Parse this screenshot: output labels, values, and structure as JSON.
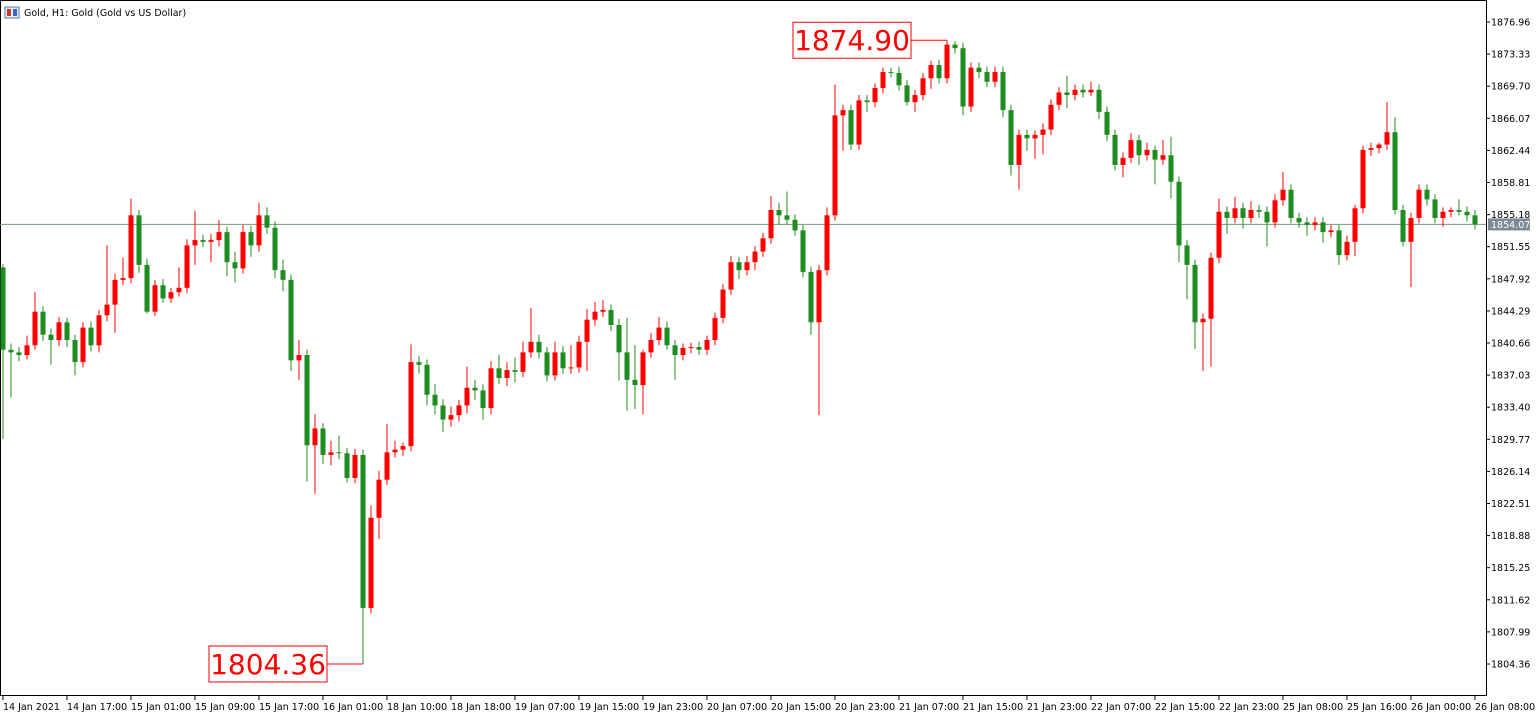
{
  "chart_data": {
    "type": "candlestick",
    "title": "Gold, H1:  Gold (Gold vs US Dollar)",
    "colors": {
      "up": "#ff0000",
      "down": "#1f8c1f"
    },
    "ylim": [
      1800.74,
      1879.45
    ],
    "yticks": [
      1876.96,
      1873.33,
      {
        "value": 1869.7,
        "label": "1869.70"
      },
      1866.07,
      1862.44,
      1858.81,
      1855.18,
      1851.55,
      1847.92,
      1844.29,
      1840.66,
      1837.03,
      {
        "value": 1833.4,
        "label": "1833.40"
      },
      1829.77,
      1826.14,
      1822.51,
      1818.88,
      1815.25,
      1811.62,
      1807.99,
      1804.36
    ],
    "xlim": [
      -0.375,
      185.375
    ],
    "xticks": [
      {
        "value": 0,
        "label": "14 Jan 2021"
      },
      {
        "value": 8,
        "label": "14 Jan 17:00"
      },
      {
        "value": 16,
        "label": "15 Jan 01:00"
      },
      {
        "value": 24,
        "label": "15 Jan 09:00"
      },
      {
        "value": 32,
        "label": "15 Jan 17:00"
      },
      {
        "value": 40,
        "label": "16 Jan 01:00"
      },
      {
        "value": 48,
        "label": "18 Jan 10:00"
      },
      {
        "value": 56,
        "label": "18 Jan 18:00"
      },
      {
        "value": 64,
        "label": "19 Jan 07:00"
      },
      {
        "value": 72,
        "label": "19 Jan 15:00"
      },
      {
        "value": 80,
        "label": "19 Jan 23:00"
      },
      {
        "value": 88,
        "label": "20 Jan 07:00"
      },
      {
        "value": 96,
        "label": "20 Jan 15:00"
      },
      {
        "value": 104,
        "label": "20 Jan 23:00"
      },
      {
        "value": 112,
        "label": "21 Jan 07:00"
      },
      {
        "value": 120,
        "label": "21 Jan 15:00"
      },
      {
        "value": 128,
        "label": "21 Jan 23:00"
      },
      {
        "value": 136,
        "label": "22 Jan 07:00"
      },
      {
        "value": 144,
        "label": "22 Jan 15:00"
      },
      {
        "value": 152,
        "label": "22 Jan 23:00"
      },
      {
        "value": 160,
        "label": "25 Jan 08:00"
      },
      {
        "value": 168,
        "label": "25 Jan 16:00"
      },
      {
        "value": 176,
        "label": "26 Jan 00:00"
      },
      {
        "value": 184,
        "label": "26 Jan 08:00"
      }
    ],
    "last_price": 1854.07,
    "annotations": [
      {
        "label": "1874.90",
        "value": 1874.9
      },
      {
        "label": "1804.36",
        "value": 1804.36
      }
    ],
    "ohlc": [
      [
        1849.2,
        1849.6,
        1829.8,
        1839.9
      ],
      [
        1839.9,
        1840.6,
        1834.5,
        1839.6
      ],
      [
        1839.6,
        1840.2,
        1838.6,
        1839.3
      ],
      [
        1839.3,
        1841.5,
        1838.8,
        1840.4
      ],
      [
        1840.4,
        1846.4,
        1839.9,
        1844.2
      ],
      [
        1844.2,
        1844.8,
        1840.9,
        1841.6
      ],
      [
        1841.6,
        1842.3,
        1838.2,
        1841.0
      ],
      [
        1841.0,
        1843.6,
        1840.3,
        1843.0
      ],
      [
        1843.0,
        1843.5,
        1840.2,
        1841.0
      ],
      [
        1841.0,
        1841.6,
        1837.0,
        1838.5
      ],
      [
        1838.5,
        1843.0,
        1837.9,
        1842.4
      ],
      [
        1842.4,
        1843.1,
        1839.7,
        1840.4
      ],
      [
        1840.4,
        1844.4,
        1839.6,
        1843.8
      ],
      [
        1843.8,
        1851.7,
        1843.1,
        1845.0
      ],
      [
        1845.0,
        1848.5,
        1841.8,
        1847.8
      ],
      [
        1847.8,
        1850.3,
        1847.2,
        1848.0
      ],
      [
        1848.0,
        1857.0,
        1847.4,
        1855.1
      ],
      [
        1855.1,
        1855.7,
        1848.6,
        1849.5
      ],
      [
        1849.5,
        1850.2,
        1844.0,
        1844.2
      ],
      [
        1844.2,
        1847.8,
        1843.7,
        1847.2
      ],
      [
        1847.2,
        1847.9,
        1845.2,
        1845.7
      ],
      [
        1845.7,
        1846.9,
        1845.2,
        1846.4
      ],
      [
        1846.4,
        1849.2,
        1845.9,
        1846.9
      ],
      [
        1846.9,
        1852.4,
        1846.3,
        1851.7
      ],
      [
        1851.7,
        1855.6,
        1849.5,
        1852.3
      ],
      [
        1852.3,
        1852.9,
        1851.5,
        1852.1
      ],
      [
        1852.1,
        1853.0,
        1849.8,
        1852.3
      ],
      [
        1852.3,
        1854.6,
        1851.6,
        1853.2
      ],
      [
        1853.2,
        1853.8,
        1848.2,
        1849.8
      ],
      [
        1849.8,
        1851.0,
        1847.5,
        1849.1
      ],
      [
        1849.1,
        1854.0,
        1848.5,
        1853.2
      ],
      [
        1853.2,
        1853.9,
        1850.4,
        1851.7
      ],
      [
        1851.7,
        1856.5,
        1851.0,
        1855.1
      ],
      [
        1855.1,
        1856.0,
        1853.0,
        1853.7
      ],
      [
        1853.7,
        1854.4,
        1848.0,
        1848.9
      ],
      [
        1848.9,
        1850.1,
        1846.5,
        1847.8
      ],
      [
        1847.8,
        1848.4,
        1837.5,
        1838.7
      ],
      [
        1838.7,
        1841.0,
        1836.5,
        1839.3
      ],
      [
        1839.3,
        1839.9,
        1825.0,
        1829.1
      ],
      [
        1829.1,
        1832.6,
        1823.6,
        1831.0
      ],
      [
        1831.0,
        1831.6,
        1827.0,
        1828.0
      ],
      [
        1828.0,
        1829.6,
        1826.8,
        1828.3
      ],
      [
        1828.3,
        1830.2,
        1827.5,
        1828.2
      ],
      [
        1828.2,
        1828.8,
        1824.9,
        1825.4
      ],
      [
        1825.4,
        1828.7,
        1824.8,
        1828.0
      ],
      [
        1828.0,
        1828.6,
        1804.36,
        1810.7
      ],
      [
        1810.7,
        1822.3,
        1810.1,
        1820.9
      ],
      [
        1820.9,
        1826.2,
        1818.5,
        1825.2
      ],
      [
        1825.2,
        1831.5,
        1824.6,
        1828.3
      ],
      [
        1828.3,
        1829.6,
        1827.7,
        1828.6
      ],
      [
        1828.6,
        1829.4,
        1827.9,
        1829.0
      ],
      [
        1829.0,
        1840.5,
        1828.4,
        1838.5
      ],
      [
        1838.5,
        1839.2,
        1837.2,
        1838.2
      ],
      [
        1838.2,
        1838.8,
        1833.6,
        1834.8
      ],
      [
        1834.8,
        1836.0,
        1832.6,
        1833.6
      ],
      [
        1833.6,
        1834.3,
        1830.6,
        1832.0
      ],
      [
        1832.0,
        1833.5,
        1831.2,
        1832.5
      ],
      [
        1832.5,
        1834.2,
        1831.8,
        1833.6
      ],
      [
        1833.6,
        1838.0,
        1832.7,
        1835.6
      ],
      [
        1835.6,
        1836.5,
        1834.2,
        1835.3
      ],
      [
        1835.3,
        1836.0,
        1832.0,
        1833.3
      ],
      [
        1833.3,
        1838.6,
        1832.6,
        1837.8
      ],
      [
        1837.8,
        1839.3,
        1836.0,
        1836.7
      ],
      [
        1836.7,
        1838.5,
        1835.8,
        1837.6
      ],
      [
        1837.6,
        1839.0,
        1836.2,
        1837.4
      ],
      [
        1837.4,
        1840.8,
        1836.8,
        1839.6
      ],
      [
        1839.6,
        1844.6,
        1839.0,
        1840.8
      ],
      [
        1840.8,
        1841.6,
        1838.9,
        1839.6
      ],
      [
        1839.6,
        1840.2,
        1836.3,
        1837.0
      ],
      [
        1837.0,
        1840.8,
        1836.4,
        1839.6
      ],
      [
        1839.6,
        1840.3,
        1837.2,
        1837.8
      ],
      [
        1837.8,
        1840.4,
        1837.2,
        1837.9
      ],
      [
        1837.9,
        1841.5,
        1837.3,
        1840.8
      ],
      [
        1840.8,
        1844.5,
        1837.5,
        1843.3
      ],
      [
        1843.3,
        1845.3,
        1842.6,
        1844.2
      ],
      [
        1844.2,
        1845.5,
        1843.6,
        1844.4
      ],
      [
        1844.4,
        1845.0,
        1842.0,
        1842.7
      ],
      [
        1842.7,
        1843.4,
        1836.4,
        1839.6
      ],
      [
        1839.6,
        1843.5,
        1833.0,
        1836.5
      ],
      [
        1836.5,
        1840.4,
        1833.2,
        1835.9
      ],
      [
        1835.9,
        1839.9,
        1832.6,
        1839.6
      ],
      [
        1839.6,
        1841.8,
        1839.0,
        1841.0
      ],
      [
        1841.0,
        1843.6,
        1840.4,
        1842.4
      ],
      [
        1842.4,
        1843.1,
        1839.9,
        1840.4
      ],
      [
        1840.4,
        1841.0,
        1836.5,
        1839.3
      ],
      [
        1839.3,
        1840.6,
        1838.7,
        1840.1
      ],
      [
        1840.1,
        1840.7,
        1839.5,
        1840.2
      ],
      [
        1840.2,
        1840.8,
        1839.3,
        1839.9
      ],
      [
        1839.9,
        1841.5,
        1839.3,
        1841.0
      ],
      [
        1841.0,
        1844.1,
        1840.4,
        1843.5
      ],
      [
        1843.5,
        1847.3,
        1842.9,
        1846.7
      ],
      [
        1846.7,
        1850.5,
        1846.1,
        1849.8
      ],
      [
        1849.8,
        1850.4,
        1847.9,
        1848.9
      ],
      [
        1848.9,
        1850.5,
        1848.3,
        1849.8
      ],
      [
        1849.8,
        1851.6,
        1848.9,
        1851.0
      ],
      [
        1851.0,
        1853.1,
        1850.4,
        1852.5
      ],
      [
        1852.5,
        1857.3,
        1851.9,
        1855.7
      ],
      [
        1855.7,
        1856.5,
        1854.0,
        1855.1
      ],
      [
        1855.1,
        1857.8,
        1854.0,
        1854.6
      ],
      [
        1854.6,
        1855.2,
        1852.8,
        1853.4
      ],
      [
        1853.4,
        1854.0,
        1848.1,
        1848.7
      ],
      [
        1848.7,
        1849.3,
        1841.6,
        1843.0
      ],
      [
        1843.0,
        1849.5,
        1832.5,
        1848.9
      ],
      [
        1848.9,
        1856.0,
        1848.3,
        1855.1
      ],
      [
        1855.1,
        1869.9,
        1854.5,
        1866.4
      ],
      [
        1866.4,
        1867.6,
        1862.4,
        1867.0
      ],
      [
        1867.0,
        1867.6,
        1862.5,
        1863.1
      ],
      [
        1863.1,
        1868.7,
        1862.5,
        1868.1
      ],
      [
        1868.1,
        1868.7,
        1866.8,
        1867.9
      ],
      [
        1867.9,
        1870.0,
        1867.3,
        1869.5
      ],
      [
        1869.5,
        1871.8,
        1868.9,
        1871.3
      ],
      [
        1871.3,
        1871.8,
        1870.7,
        1871.2
      ],
      [
        1871.2,
        1871.9,
        1869.2,
        1869.8
      ],
      [
        1869.8,
        1870.4,
        1867.5,
        1867.9
      ],
      [
        1867.9,
        1869.3,
        1866.8,
        1868.7
      ],
      [
        1868.7,
        1871.2,
        1868.1,
        1870.6
      ],
      [
        1870.6,
        1872.6,
        1869.4,
        1872.1
      ],
      [
        1872.1,
        1872.7,
        1870.0,
        1870.6
      ],
      [
        1870.6,
        1874.9,
        1870.0,
        1874.4
      ],
      [
        1874.4,
        1874.8,
        1873.4,
        1874.0
      ],
      [
        1874.0,
        1874.6,
        1866.4,
        1867.4
      ],
      [
        1867.4,
        1872.4,
        1866.8,
        1871.8
      ],
      [
        1871.8,
        1872.4,
        1870.6,
        1871.3
      ],
      [
        1871.3,
        1871.9,
        1869.6,
        1870.2
      ],
      [
        1870.2,
        1871.9,
        1869.6,
        1871.3
      ],
      [
        1871.3,
        1871.9,
        1866.2,
        1867.0
      ],
      [
        1867.0,
        1867.6,
        1859.6,
        1860.8
      ],
      [
        1860.8,
        1864.8,
        1858.0,
        1864.2
      ],
      [
        1864.2,
        1864.8,
        1862.4,
        1863.8
      ],
      [
        1863.8,
        1864.7,
        1861.5,
        1864.2
      ],
      [
        1864.2,
        1865.5,
        1862.0,
        1864.8
      ],
      [
        1864.8,
        1868.2,
        1864.2,
        1867.6
      ],
      [
        1867.6,
        1869.6,
        1867.0,
        1869.0
      ],
      [
        1869.0,
        1870.9,
        1867.2,
        1868.7
      ],
      [
        1868.7,
        1869.9,
        1868.1,
        1869.3
      ],
      [
        1869.3,
        1869.9,
        1868.4,
        1869.0
      ],
      [
        1869.0,
        1870.2,
        1868.6,
        1869.3
      ],
      [
        1869.3,
        1869.9,
        1866.0,
        1866.8
      ],
      [
        1866.8,
        1867.4,
        1863.5,
        1864.2
      ],
      [
        1864.2,
        1864.8,
        1860.2,
        1860.8
      ],
      [
        1860.8,
        1862.2,
        1859.4,
        1861.6
      ],
      [
        1861.6,
        1864.4,
        1861.0,
        1863.6
      ],
      [
        1863.6,
        1864.2,
        1860.8,
        1861.9
      ],
      [
        1861.9,
        1863.3,
        1861.3,
        1862.5
      ],
      [
        1862.5,
        1863.0,
        1858.6,
        1861.4
      ],
      [
        1861.4,
        1863.6,
        1860.8,
        1861.9
      ],
      [
        1861.9,
        1864.0,
        1857.0,
        1858.9
      ],
      [
        1858.9,
        1859.5,
        1849.8,
        1851.7
      ],
      [
        1851.7,
        1852.3,
        1845.6,
        1849.5
      ],
      [
        1849.5,
        1850.1,
        1840.0,
        1843.0
      ],
      [
        1843.0,
        1844.0,
        1837.5,
        1843.4
      ],
      [
        1843.4,
        1850.9,
        1838.0,
        1850.3
      ],
      [
        1850.3,
        1857.0,
        1849.7,
        1855.5
      ],
      [
        1855.5,
        1856.1,
        1853.0,
        1854.8
      ],
      [
        1854.8,
        1857.2,
        1854.2,
        1855.9
      ],
      [
        1855.9,
        1856.5,
        1853.6,
        1854.8
      ],
      [
        1854.8,
        1856.7,
        1854.2,
        1855.7
      ],
      [
        1855.7,
        1856.3,
        1854.8,
        1855.5
      ],
      [
        1855.5,
        1856.1,
        1851.6,
        1854.3
      ],
      [
        1854.3,
        1857.5,
        1853.7,
        1856.8
      ],
      [
        1856.8,
        1860.0,
        1856.2,
        1858.0
      ],
      [
        1858.0,
        1858.6,
        1854.2,
        1854.8
      ],
      [
        1854.8,
        1855.4,
        1853.7,
        1854.3
      ],
      [
        1854.3,
        1854.9,
        1852.8,
        1854.0
      ],
      [
        1854.0,
        1854.9,
        1853.4,
        1854.3
      ],
      [
        1854.3,
        1854.9,
        1852.0,
        1853.2
      ],
      [
        1853.2,
        1854.0,
        1852.6,
        1853.4
      ],
      [
        1853.4,
        1854.0,
        1849.5,
        1850.6
      ],
      [
        1850.6,
        1852.8,
        1850.0,
        1852.1
      ],
      [
        1852.1,
        1856.3,
        1850.5,
        1855.9
      ],
      [
        1855.9,
        1863.0,
        1855.3,
        1862.5
      ],
      [
        1862.5,
        1863.3,
        1861.8,
        1862.7
      ],
      [
        1862.7,
        1863.3,
        1862.1,
        1863.1
      ],
      [
        1863.1,
        1867.9,
        1862.5,
        1864.5
      ],
      [
        1864.5,
        1866.2,
        1855.2,
        1855.7
      ],
      [
        1855.7,
        1856.3,
        1851.6,
        1852.1
      ],
      [
        1852.1,
        1855.4,
        1847.0,
        1854.8
      ],
      [
        1854.8,
        1858.6,
        1854.2,
        1858.0
      ],
      [
        1858.0,
        1858.6,
        1856.2,
        1856.9
      ],
      [
        1856.9,
        1857.5,
        1854.2,
        1854.8
      ],
      [
        1854.8,
        1856.0,
        1853.8,
        1855.5
      ],
      [
        1855.5,
        1856.0,
        1854.9,
        1855.7
      ],
      [
        1855.7,
        1856.9,
        1855.1,
        1855.5
      ],
      [
        1855.5,
        1856.1,
        1854.4,
        1855.1
      ],
      [
        1855.1,
        1855.7,
        1853.5,
        1854.07
      ]
    ]
  }
}
